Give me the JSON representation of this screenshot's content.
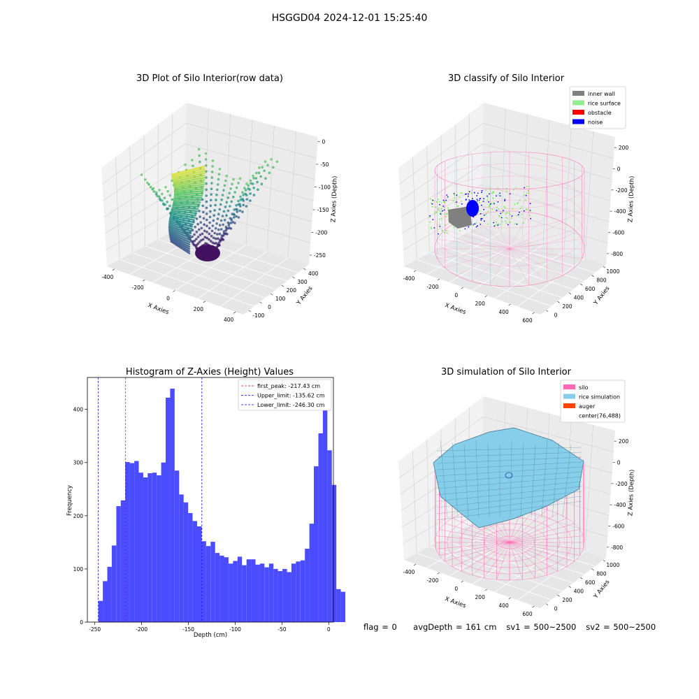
{
  "suptitle": "HSGGD04 2024-12-01 15:25:40",
  "footer": {
    "flag": "flag = 0",
    "avgDepth": "avgDepth = 161 cm",
    "sv1": "sv1 = 500~2500",
    "sv2": "sv2 = 500~2500"
  },
  "colors": {
    "inner_wall": "#808080",
    "rice_surface": "#90ee90",
    "obstacle": "#ff0000",
    "noise": "#0000ff",
    "silo": "#ff69b4",
    "rice_simulation": "#87ceeb",
    "auger": "#ff4500",
    "histogram_bar": "#4b4bff",
    "peak_line": "#ff0000",
    "limit_line": "#0000ff"
  },
  "chart_data": [
    {
      "type": "scatter3d",
      "title": "3D Plot of Silo Interior(row data)",
      "xlabel": "X Axies",
      "ylabel": "Y Axies",
      "zlabel": "Z Axies (Depth)",
      "x_ticks": [
        -400,
        -200,
        0,
        200,
        400
      ],
      "y_ticks": [
        -100,
        0,
        100,
        200,
        300,
        400
      ],
      "z_ticks": [
        0,
        -50,
        -100,
        -150,
        -200,
        -250
      ],
      "xlim": [
        -450,
        450
      ],
      "ylim": [
        -150,
        450
      ],
      "zlim": [
        -270,
        10
      ],
      "colormap": "viridis"
    },
    {
      "type": "scatter3d",
      "title": "3D classify of Silo Interior",
      "xlabel": "X Axies",
      "ylabel": "Y Axies",
      "zlabel": "Z Axies (Depth)",
      "x_ticks": [
        -400,
        -200,
        0,
        200,
        400,
        600
      ],
      "y_ticks": [
        0,
        200,
        400,
        600,
        800,
        1000
      ],
      "z_ticks": [
        200,
        0,
        -200,
        -400,
        -600,
        -800
      ],
      "xlim": [
        -500,
        650
      ],
      "ylim": [
        -100,
        1050
      ],
      "zlim": [
        -900,
        300
      ],
      "legend": {
        "position": "top-right",
        "entries": [
          {
            "label": "inner wall",
            "color": "#808080"
          },
          {
            "label": "rice surface",
            "color": "#90ee90"
          },
          {
            "label": "obstacle",
            "color": "#ff0000"
          },
          {
            "label": "noise",
            "color": "#0000ff"
          }
        ]
      }
    },
    {
      "type": "bar",
      "title": "Histogram of Z-Axies (Height) Values",
      "xlabel": "Depth (cm)",
      "ylabel": "Frequency",
      "xlim": [
        -258,
        5
      ],
      "ylim": [
        0,
        460
      ],
      "x_ticks": [
        -250,
        -200,
        -150,
        -100,
        -50,
        0
      ],
      "y_ticks": [
        0,
        100,
        200,
        300,
        400
      ],
      "bin_start": -246.3,
      "bin_width": 4.8,
      "values": [
        40,
        77,
        104,
        144,
        218,
        229,
        301,
        299,
        303,
        281,
        272,
        280,
        281,
        276,
        300,
        422,
        439,
        285,
        240,
        225,
        205,
        190,
        180,
        152,
        143,
        151,
        130,
        125,
        122,
        110,
        115,
        123,
        107,
        118,
        118,
        108,
        110,
        103,
        110,
        100,
        96,
        100,
        94,
        110,
        114,
        116,
        138,
        185,
        293,
        355,
        400,
        323,
        258,
        62,
        57
      ],
      "legend": {
        "position": "top-right",
        "entries": [
          {
            "label": "first_peak: -217.43 cm",
            "value": -217.43,
            "color": "#ff0000"
          },
          {
            "label": "Upper_limit: -135.62 cm",
            "value": -135.62,
            "color": "#0000ff"
          },
          {
            "label": "Lower_limit: -246.30 cm",
            "value": -246.3,
            "color": "#0000ff"
          }
        ]
      }
    },
    {
      "type": "surface3d",
      "title": "3D simulation of Silo Interior",
      "xlabel": "X Axies",
      "ylabel": "Y Axies",
      "zlabel": "Z Axies (Depth)",
      "x_ticks": [
        -400,
        -200,
        0,
        200,
        400,
        600
      ],
      "y_ticks": [
        0,
        200,
        400,
        600,
        800,
        1000
      ],
      "z_ticks": [
        200,
        0,
        -200,
        -400,
        -600,
        -800
      ],
      "xlim": [
        -500,
        650
      ],
      "ylim": [
        -100,
        1050
      ],
      "zlim": [
        -900,
        300
      ],
      "legend": {
        "position": "top-right",
        "entries": [
          {
            "label": "silo",
            "color": "#ff69b4"
          },
          {
            "label": "rice simulation",
            "color": "#87ceeb"
          },
          {
            "label": "auger",
            "color": "#ff4500"
          },
          {
            "label": "center(76,488)",
            "color": ""
          }
        ]
      }
    }
  ]
}
